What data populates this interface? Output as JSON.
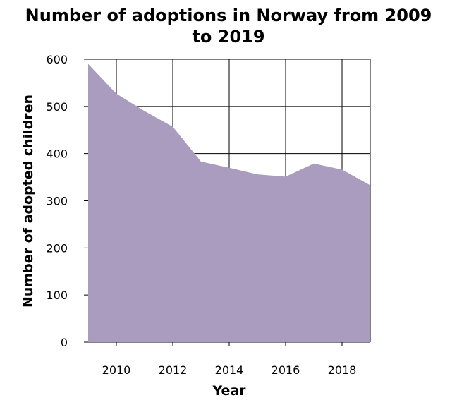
{
  "chart_data": {
    "type": "area",
    "title_lines": [
      "Number of adoptions in Norway from 2009",
      "to 2019"
    ],
    "xlabel": "Year",
    "ylabel": "Number of adopted children",
    "x": [
      2009,
      2010,
      2011,
      2012,
      2013,
      2014,
      2015,
      2016,
      2017,
      2018,
      2019
    ],
    "values": [
      590,
      527,
      490,
      457,
      383,
      370,
      356,
      351,
      379,
      366,
      333
    ],
    "xlim": [
      2009,
      2019
    ],
    "ylim": [
      0,
      600
    ],
    "xticks": [
      2010,
      2012,
      2014,
      2016,
      2018
    ],
    "yticks": [
      0,
      100,
      200,
      300,
      400,
      500,
      600
    ],
    "grid": true,
    "fill_color": "#aa9cbf",
    "grid_color": "#000000"
  }
}
